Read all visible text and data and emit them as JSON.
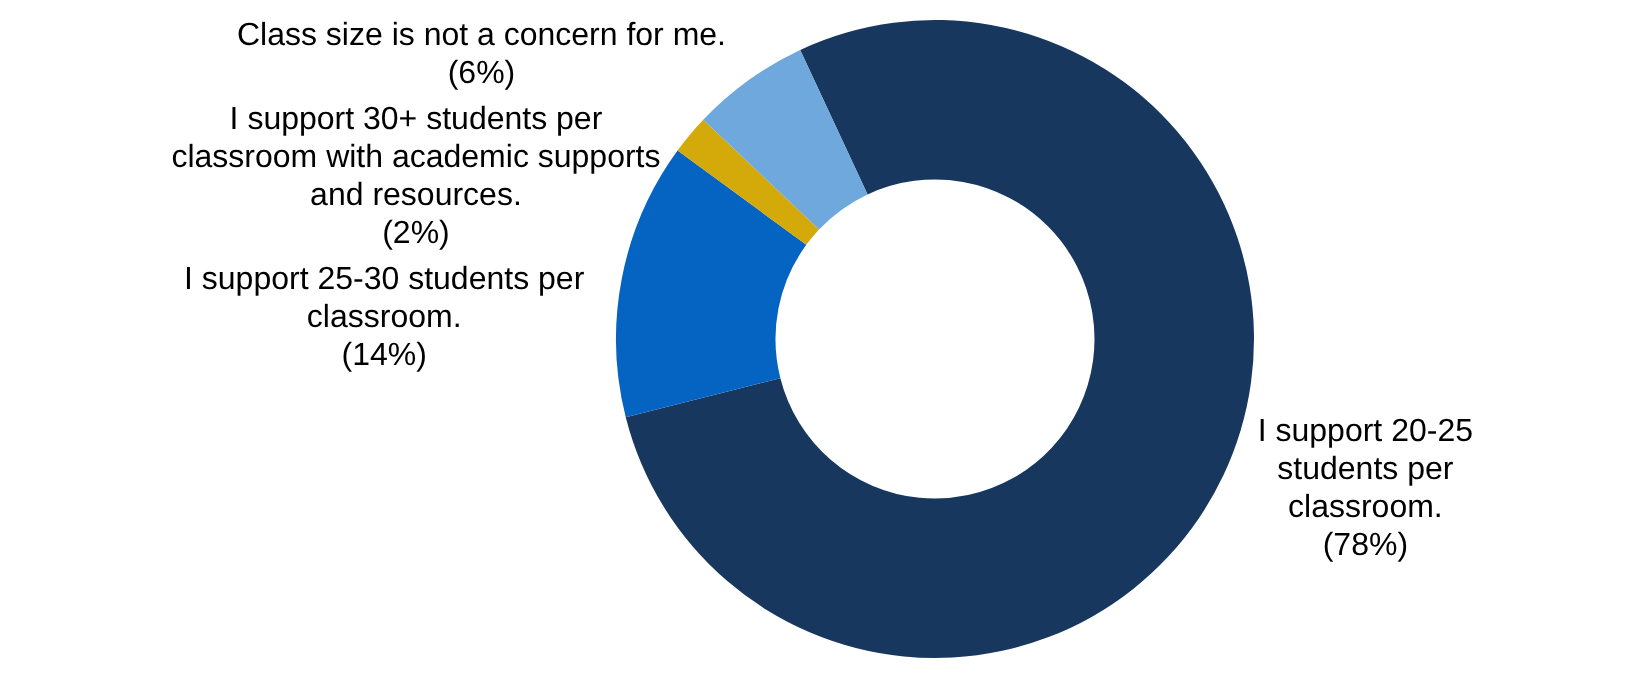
{
  "chart_data": {
    "type": "donut",
    "categories": [
      "I support 20-25 students per classroom.",
      "I support 25-30 students per classroom.",
      "I support 30+ students per classroom with academic supports and resources.",
      "Class size is not a concern for me."
    ],
    "values": [
      78,
      14,
      2,
      6
    ],
    "colors": [
      "#17375e",
      "#0563c1",
      "#d4a90a",
      "#6fa8dc"
    ],
    "value_labels": [
      "(78%)",
      "(14%)",
      "(2%)",
      "(6%)"
    ]
  }
}
